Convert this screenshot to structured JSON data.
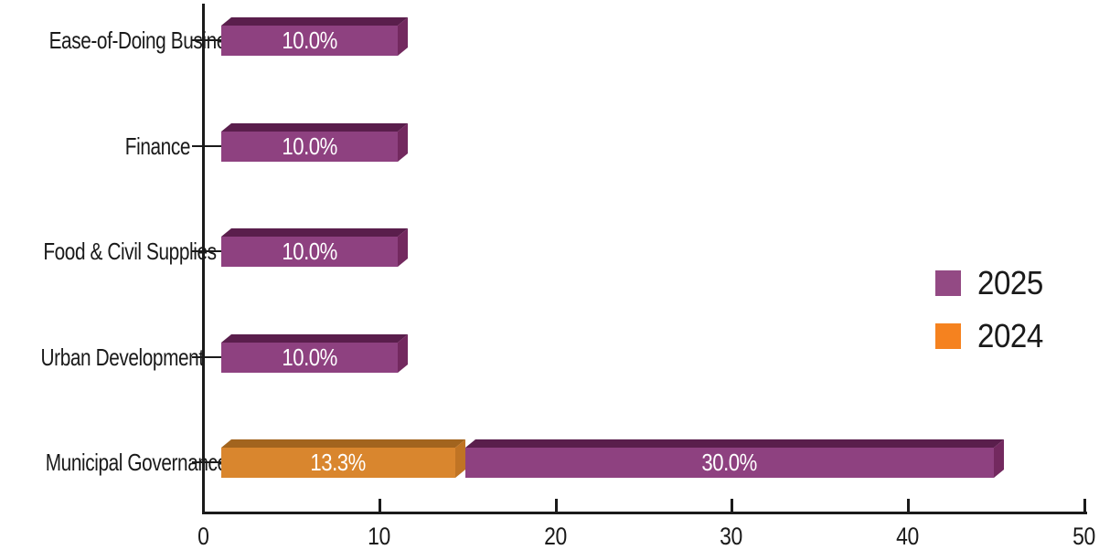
{
  "chart_data": {
    "type": "bar",
    "orientation": "horizontal",
    "style": "3d-extruded",
    "title": "",
    "categories": [
      "Ease-of-Doing Business",
      "Finance",
      "Food & Civil Supplies",
      "Urban Development",
      "Municipal Governance"
    ],
    "series": [
      {
        "name": "2024",
        "values": [
          null,
          null,
          null,
          null,
          13.3
        ],
        "value_labels": [
          null,
          null,
          null,
          null,
          "13.3%"
        ],
        "color": "#d9862e",
        "color_top": "#a2641e",
        "color_side": "#c07424"
      },
      {
        "name": "2025",
        "values": [
          10.0,
          10.0,
          10.0,
          10.0,
          30.0
        ],
        "value_labels": [
          "10.0%",
          "10.0%",
          "10.0%",
          "10.0%",
          "30.0%"
        ],
        "color": "#8e4180",
        "color_top": "#5a1e4c",
        "color_side": "#73295f"
      }
    ],
    "stacked": true,
    "x_axis": {
      "min": 0,
      "max": 50,
      "tick_values": [
        0,
        10,
        20,
        30,
        40,
        50
      ],
      "tick_labels": [
        "0",
        "10",
        "20",
        "30",
        "40",
        "50"
      ]
    },
    "legend": {
      "position": "right",
      "items": [
        {
          "label": "2025",
          "color": "#934a84"
        },
        {
          "label": "2024",
          "color": "#f5821f"
        }
      ]
    },
    "value_label_color": "#ffffff",
    "text_color": "#1a1a1a",
    "axis_color": "#1a1a1a",
    "background": "#ffffff"
  }
}
